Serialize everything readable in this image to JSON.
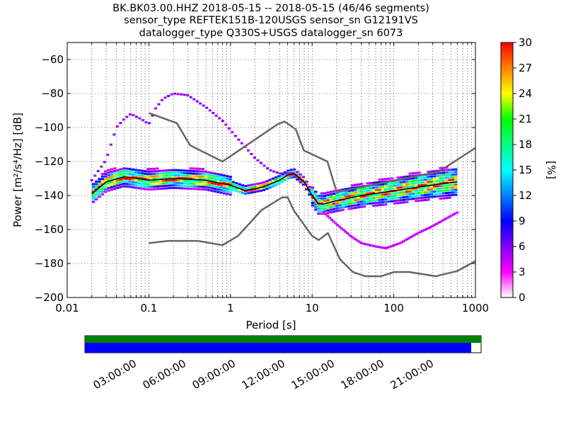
{
  "chart_data": {
    "type": "heatmap",
    "title_lines": [
      "BK.BK03.00.HHZ   2018-05-15 -- 2018-05-15  (46/46 segments)",
      "sensor_type REFTEK151B-120USGS sensor_sn G12191VS",
      "datalogger_type Q330S+USGS datalogger_sn 6073"
    ],
    "xlabel": "Period [s]",
    "ylabel": "Power [m²/s⁴/Hz] [dB]",
    "x_scale": "log",
    "xlim": [
      0.01,
      1000
    ],
    "ylim": [
      -200,
      -50
    ],
    "x_ticks": [
      0.01,
      0.1,
      1,
      10,
      100,
      1000
    ],
    "x_tick_labels": [
      "0.01",
      "0.1",
      "1",
      "10",
      "100",
      "1000"
    ],
    "y_ticks": [
      -200,
      -180,
      -160,
      -140,
      -120,
      -100,
      -80,
      -60
    ],
    "y_tick_labels": [
      "−200",
      "−180",
      "−160",
      "−140",
      "−120",
      "−100",
      "−80",
      "−60"
    ],
    "grid": true,
    "colorbar": {
      "label": "[%]",
      "range": [
        0,
        30
      ],
      "ticks": [
        0,
        3,
        6,
        9,
        12,
        15,
        18,
        21,
        24,
        27,
        30
      ],
      "tick_labels": [
        "0",
        "3",
        "6",
        "9",
        "12",
        "15",
        "18",
        "21",
        "24",
        "27",
        "30"
      ],
      "colormap": [
        "#ffffff",
        "#ff00ff",
        "#8000ff",
        "#0000ff",
        "#0080ff",
        "#00ffff",
        "#00ff80",
        "#00ff00",
        "#ffff00",
        "#ff8000",
        "#ff0000"
      ]
    },
    "noise_models": {
      "color": "#666666",
      "nhnm": {
        "period": [
          0.1,
          0.22,
          0.32,
          0.8,
          3.8,
          4.6,
          6.3,
          7.9,
          15.4,
          20,
          354.8,
          1000
        ],
        "power": [
          -91.5,
          -97.4,
          -110.5,
          -120,
          -98,
          -96.5,
          -101,
          -113.5,
          -120,
          -138,
          -126,
          -112
        ]
      },
      "nlnm": {
        "period": [
          0.1,
          0.17,
          0.4,
          0.8,
          1.24,
          2.4,
          4.3,
          5,
          6,
          10,
          12,
          15.6,
          21.9,
          31.6,
          45,
          70,
          101,
          154,
          328,
          600,
          1000
        ],
        "power": [
          -168,
          -166.7,
          -166.7,
          -169.2,
          -163.7,
          -148.6,
          -141.1,
          -141.1,
          -149,
          -163.8,
          -166.2,
          -162.1,
          -177.5,
          -185,
          -187.5,
          -187.5,
          -185,
          -185,
          -187.5,
          -184.4,
          -178.6
        ]
      }
    },
    "mean_curve": {
      "color": "#000000",
      "period": [
        0.02,
        0.03,
        0.05,
        0.1,
        0.2,
        0.5,
        1,
        1.5,
        2.5,
        4,
        5,
        6,
        8,
        10,
        12,
        14,
        20,
        40,
        80,
        200,
        400,
        600
      ],
      "power": [
        -139,
        -132,
        -129,
        -131,
        -130,
        -131,
        -134,
        -137,
        -135,
        -131,
        -128,
        -127,
        -132,
        -140,
        -145,
        -145,
        -143,
        -140,
        -138,
        -135,
        -133,
        -132
      ]
    },
    "high_outlier_curve": {
      "period": [
        0.02,
        0.03,
        0.04,
        0.05,
        0.06,
        0.08,
        0.1,
        0.12,
        0.15,
        0.2,
        0.3,
        0.5,
        0.8,
        1.2,
        2,
        3,
        4,
        5,
        6,
        8,
        10
      ],
      "power": [
        -131,
        -119,
        -100,
        -95,
        -92,
        -95,
        -98,
        -89,
        -83,
        -80,
        -81,
        -88,
        -96,
        -106,
        -118,
        -125,
        -127,
        -127,
        -127,
        -132,
        -140
      ]
    },
    "low_outlier_curve": {
      "period": [
        14,
        20,
        30,
        40,
        60,
        80,
        120,
        200,
        300,
        500,
        600
      ],
      "power": [
        -150,
        -157,
        -164,
        -168,
        -170,
        -171,
        -168,
        -162,
        -158,
        -152,
        -150
      ]
    },
    "x_scale_period_min": 0.02,
    "x_scale_period_max": 600,
    "data_availability": {
      "start": "00:00:00",
      "end": "24:00:00",
      "coverage_fraction": 0.975,
      "data_present_color": "#008000",
      "gap_marker_color": "#0000ff",
      "time_ticks": [
        "03:00:00",
        "06:00:00",
        "09:00:00",
        "12:00:00",
        "15:00:00",
        "18:00:00",
        "21:00:00"
      ]
    }
  }
}
